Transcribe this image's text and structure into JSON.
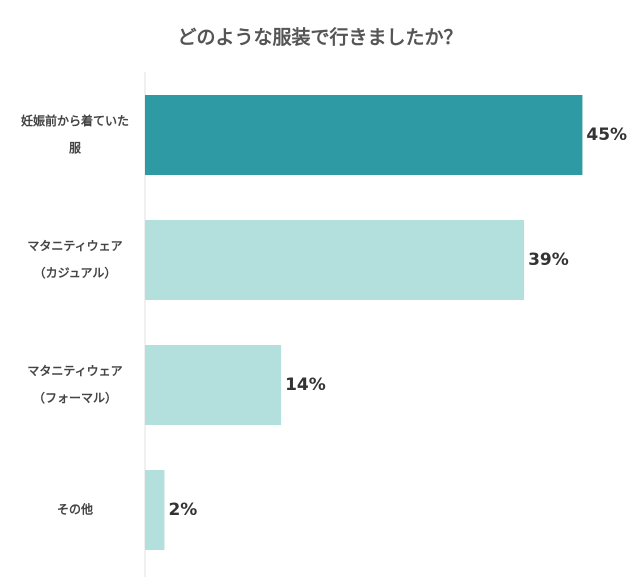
{
  "chart_data": {
    "type": "bar",
    "orientation": "horizontal",
    "title": "どのような服装で行きましたか？",
    "categories": [
      [
        "妊娠前から着ていた",
        "服"
      ],
      [
        "マタニティウェア",
        "（カジュアル）"
      ],
      [
        "マタニティウェア",
        "（フォーマル）"
      ],
      [
        "その他"
      ]
    ],
    "values": [
      45,
      39,
      14,
      2
    ],
    "value_labels": [
      "45%",
      "39%",
      "14%",
      "2%"
    ],
    "colors": [
      "#2e9aa3",
      "#b3e0dd",
      "#b3e0dd",
      "#b3e0dd"
    ],
    "xlim": [
      0,
      50
    ]
  }
}
